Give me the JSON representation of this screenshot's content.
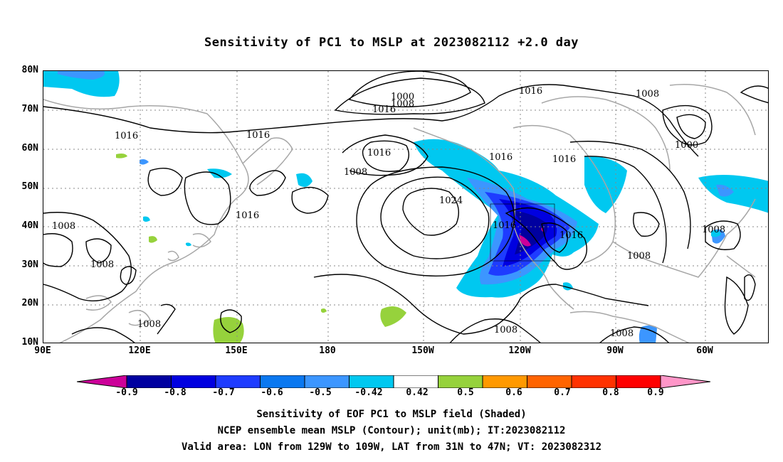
{
  "title": "Sensitivity of PC1 to MSLP at 2023082112 +2.0 day",
  "map": {
    "lat_labels": [
      "80N",
      "70N",
      "60N",
      "50N",
      "40N",
      "30N",
      "20N",
      "10N"
    ],
    "lon_labels": [
      "90E",
      "120E",
      "150E",
      "180",
      "150W",
      "120W",
      "90W",
      "60W"
    ],
    "contour_labels": [
      {
        "text": "1000"
      },
      {
        "text": "1008"
      },
      {
        "text": "1016"
      },
      {
        "text": "1016"
      },
      {
        "text": "1008"
      },
      {
        "text": "1016"
      },
      {
        "text": "1016"
      },
      {
        "text": "1016"
      },
      {
        "text": "1008"
      },
      {
        "text": "1024"
      },
      {
        "text": "1016"
      },
      {
        "text": "1016"
      },
      {
        "text": "1016"
      },
      {
        "text": "1016"
      },
      {
        "text": "1008"
      },
      {
        "text": "1016"
      },
      {
        "text": "1000"
      },
      {
        "text": "1008"
      },
      {
        "text": "1008"
      },
      {
        "text": "1008"
      },
      {
        "text": "1008"
      },
      {
        "text": "1008"
      },
      {
        "text": "1008"
      }
    ]
  },
  "colorbar": {
    "labels": [
      "-0.9",
      "-0.8",
      "-0.7",
      "-0.6",
      "-0.5",
      "-0.42",
      "0.42",
      "0.5",
      "0.6",
      "0.7",
      "0.8",
      "0.9"
    ],
    "colors": [
      "#cc0099",
      "#0000a0",
      "#0000e0",
      "#1e3cff",
      "#0a78f0",
      "#3c96ff",
      "#00c8f0",
      "#ffffff",
      "#96d23c",
      "#ff9900",
      "#ff6400",
      "#ff3200",
      "#ff0000",
      "#ff96c8"
    ]
  },
  "captions": {
    "line1": "Sensitivity of EOF PC1 to MSLP field (Shaded)",
    "line2": "NCEP ensemble mean MSLP (Contour); unit(mb); IT:2023082112",
    "line3": "Valid area: LON from 129W to 109W, LAT from 31N to 47N; VT: 2023082312"
  }
}
